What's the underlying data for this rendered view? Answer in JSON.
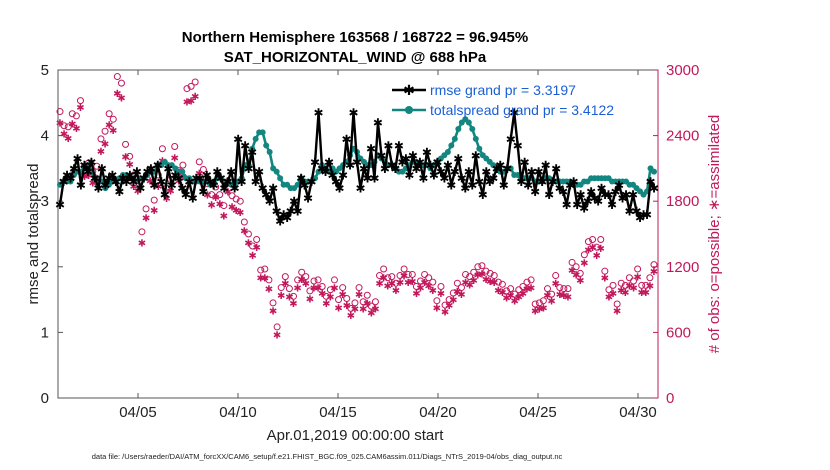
{
  "chart_data": {
    "type": "line",
    "title_lines": [
      "Northern Hemisphere 163568 / 168722 = 96.945%",
      "SAT_HORIZONTAL_WIND @ 688 hPa"
    ],
    "xlabel": "Apr.01,2019 00:00:00 start",
    "ylabel": "rmse and totalspread",
    "ylabel_right": "# of obs: o=possible; ∗=assimilated",
    "footnote": "data file: /Users/raeder/DAI/ATM_forcXX/CAM6_setup/f.e21.FHIST_BGC.f09_025.CAM6assim.011/Diags_NTrS_2019-04/obs_diag_output.nc",
    "x_range": [
      1,
      31
    ],
    "ylim": [
      0,
      5
    ],
    "ylim_right": [
      0,
      3000
    ],
    "x_tick_values": [
      5,
      10,
      15,
      20,
      25,
      30
    ],
    "x_tick_labels": [
      "04/05",
      "04/10",
      "04/15",
      "04/20",
      "04/25",
      "04/30"
    ],
    "y_ticks": [
      "0",
      "1",
      "2",
      "3",
      "4",
      "5"
    ],
    "y_ticks_right": [
      "0",
      "600",
      "1200",
      "1800",
      "2400",
      "3000"
    ],
    "series": [
      {
        "name": "rmse grand pr = 3.3197",
        "color": "#000000",
        "marker": "asterisk",
        "values": [
          2.95,
          3.3,
          3.4,
          3.35,
          3.5,
          3.65,
          3.25,
          3.55,
          3.45,
          3.6,
          3.35,
          3.2,
          3.5,
          3.25,
          3.35,
          3.4,
          3.3,
          3.15,
          3.35,
          3.3,
          3.4,
          3.3,
          3.45,
          3.2,
          3.35,
          3.45,
          3.5,
          3.25,
          3.55,
          3.3,
          3.1,
          3.5,
          3.25,
          3.4,
          3.35,
          3.2,
          3.1,
          3.3,
          3.05,
          3.35,
          3.35,
          3.15,
          3.4,
          3.3,
          3.25,
          3.45,
          3.35,
          3.2,
          3.3,
          3.45,
          3.2,
          3.95,
          3.3,
          3.85,
          3.5,
          3.75,
          3.3,
          3.45,
          3.2,
          3.1,
          3.0,
          3.2,
          2.85,
          2.7,
          2.8,
          2.75,
          2.85,
          3.0,
          2.85,
          3.35,
          3.25,
          3.05,
          3.3,
          3.6,
          4.35,
          3.5,
          3.45,
          3.6,
          3.4,
          3.3,
          3.2,
          3.4,
          3.95,
          3.55,
          4.35,
          3.6,
          3.2,
          3.5,
          3.35,
          3.8,
          3.35,
          4.2,
          3.7,
          3.5,
          3.85,
          3.55,
          3.5,
          3.85,
          3.6,
          3.65,
          3.4,
          3.7,
          3.5,
          3.6,
          3.35,
          3.75,
          3.55,
          3.4,
          3.6,
          3.45,
          3.35,
          3.55,
          3.25,
          3.45,
          3.65,
          3.35,
          3.2,
          3.45,
          3.25,
          3.7,
          3.3,
          3.1,
          3.45,
          3.3,
          3.35,
          3.5,
          3.55,
          3.25,
          3.5,
          3.95,
          4.35,
          3.85,
          3.3,
          3.6,
          3.25,
          3.45,
          3.15,
          3.45,
          3.3,
          3.55,
          3.1,
          3.3,
          3.5,
          3.2,
          3.15,
          2.95,
          3.25,
          3.3,
          2.95,
          3.1,
          2.9,
          3.0,
          3.15,
          3.05,
          3.0,
          3.2,
          3.1,
          3.1,
          2.95,
          3.15,
          3.25,
          3.05,
          3.1,
          2.85,
          3.1,
          2.85,
          2.75,
          2.8,
          2.8,
          3.3,
          3.2
        ],
        "sample_note": "values every 4 steps per day approx."
      },
      {
        "name": "totalspread grand pr = 3.4122",
        "color": "#138680",
        "marker": "circle-filled",
        "values": [
          3.25,
          3.3,
          3.3,
          3.3,
          3.4,
          3.45,
          3.45,
          3.5,
          3.55,
          3.45,
          3.35,
          3.3,
          3.3,
          3.2,
          3.25,
          3.3,
          3.3,
          3.35,
          3.4,
          3.4,
          3.35,
          3.35,
          3.3,
          3.35,
          3.35,
          3.4,
          3.45,
          3.45,
          3.55,
          3.55,
          3.6,
          3.55,
          3.55,
          3.5,
          3.45,
          3.45,
          3.35,
          3.35,
          3.3,
          3.3,
          3.3,
          3.3,
          3.3,
          3.25,
          3.3,
          3.35,
          3.35,
          3.3,
          3.3,
          3.25,
          3.25,
          3.3,
          3.35,
          3.55,
          3.55,
          3.8,
          3.95,
          4.05,
          4.05,
          3.85,
          3.75,
          3.5,
          3.45,
          3.35,
          3.25,
          3.25,
          3.2,
          3.2,
          3.25,
          3.35,
          3.3,
          3.3,
          3.3,
          3.35,
          3.45,
          3.55,
          3.5,
          3.45,
          3.5,
          3.45,
          3.5,
          3.55,
          3.6,
          3.7,
          3.8,
          3.75,
          3.65,
          3.6,
          3.55,
          3.55,
          3.6,
          3.7,
          3.65,
          3.6,
          3.55,
          3.55,
          3.5,
          3.45,
          3.45,
          3.5,
          3.55,
          3.6,
          3.6,
          3.55,
          3.55,
          3.55,
          3.5,
          3.55,
          3.6,
          3.65,
          3.7,
          3.75,
          3.85,
          3.95,
          4.1,
          4.2,
          4.25,
          4.2,
          4.1,
          3.95,
          3.8,
          3.7,
          3.65,
          3.6,
          3.55,
          3.5,
          3.45,
          3.45,
          3.5,
          3.5,
          3.4,
          3.4,
          3.35,
          3.35,
          3.35,
          3.35,
          3.3,
          3.3,
          3.3,
          3.35,
          3.35,
          3.3,
          3.3,
          3.3,
          3.3,
          3.3,
          3.3,
          3.25,
          3.25,
          3.25,
          3.3,
          3.3,
          3.35,
          3.35,
          3.35,
          3.35,
          3.35,
          3.35,
          3.3,
          3.3,
          3.3,
          3.3,
          3.3,
          3.25,
          3.25,
          3.2,
          3.15,
          3.1,
          3.15,
          3.5,
          3.45
        ]
      },
      {
        "name": "possible",
        "axis": "right",
        "color": "#c2185b",
        "marker": "circle-open",
        "values": [
          2620,
          2490,
          2480,
          2600,
          2580,
          2720,
          2120,
          2150,
          2070,
          2120,
          2370,
          2440,
          2600,
          2550,
          2940,
          2880,
          2320,
          2210,
          2040,
          2000,
          1520,
          1730,
          2090,
          1810,
          2040,
          2280,
          1920,
          2000,
          2300,
          2080,
          2130,
          2830,
          2850,
          2890,
          2160,
          2090,
          1960,
          1860,
          1930,
          1860,
          1760,
          1980,
          1850,
          1820,
          1800,
          1610,
          1500,
          1390,
          1450,
          1170,
          1180,
          1080,
          870,
          650,
          1010,
          1110,
          1000,
          930,
          1080,
          1150,
          1110,
          980,
          1070,
          1080,
          1020,
          930,
          990,
          1080,
          900,
          1010,
          910,
          820,
          870,
          1010,
          880,
          940,
          840,
          880,
          1120,
          1180,
          1100,
          1110,
          1050,
          1120,
          1180,
          1130,
          1130,
          1020,
          1070,
          1130,
          1100,
          1060,
          890,
          1020,
          850,
          900,
          960,
          1050,
          1010,
          1130,
          1110,
          1150,
          1200,
          1210,
          1160,
          1140,
          1120,
          1060,
          1040,
          980,
          1000,
          950,
          990,
          1020,
          1060,
          1080,
          860,
          870,
          890,
          1000,
          950,
          1120,
          1010,
          1000,
          1000,
          1240,
          1200,
          1140,
          1310,
          1430,
          1450,
          1380,
          1450,
          1160,
          990,
          1030,
          860,
          1050,
          1030,
          1100,
          1070,
          1180,
          1030,
          1030,
          1100,
          1220
        ]
      },
      {
        "name": "assimilated",
        "axis": "right",
        "color": "#c2185b",
        "marker": "asterisk",
        "values": [
          2520,
          2420,
          2380,
          2510,
          2470,
          2660,
          2030,
          2040,
          1970,
          2010,
          2260,
          2330,
          2500,
          2450,
          2790,
          2750,
          2210,
          2140,
          1940,
          1900,
          1420,
          1650,
          1990,
          1720,
          1940,
          2170,
          1830,
          1900,
          2200,
          1990,
          2030,
          2710,
          2720,
          2760,
          2060,
          1990,
          1860,
          1770,
          1840,
          1780,
          1670,
          1890,
          1750,
          1720,
          1700,
          1530,
          1420,
          1310,
          1380,
          1100,
          1100,
          1000,
          800,
          580,
          940,
          1050,
          930,
          870,
          1010,
          1090,
          1050,
          910,
          1010,
          1010,
          960,
          870,
          930,
          1010,
          830,
          950,
          850,
          760,
          820,
          950,
          820,
          870,
          780,
          820,
          1050,
          1100,
          1030,
          1050,
          990,
          1060,
          1120,
          1060,
          1070,
          960,
          1010,
          1060,
          1030,
          990,
          830,
          960,
          790,
          850,
          900,
          980,
          950,
          1060,
          1040,
          1080,
          1130,
          1140,
          1090,
          1070,
          1060,
          990,
          970,
          920,
          940,
          890,
          930,
          960,
          1000,
          1010,
          800,
          820,
          830,
          940,
          890,
          1050,
          950,
          940,
          930,
          1170,
          1130,
          1080,
          1240,
          1360,
          1380,
          1310,
          1370,
          1100,
          930,
          960,
          800,
          990,
          970,
          1030,
          1010,
          1110,
          970,
          970,
          1030,
          1160
        ]
      }
    ],
    "legend_position": "top-right",
    "grid": false
  }
}
